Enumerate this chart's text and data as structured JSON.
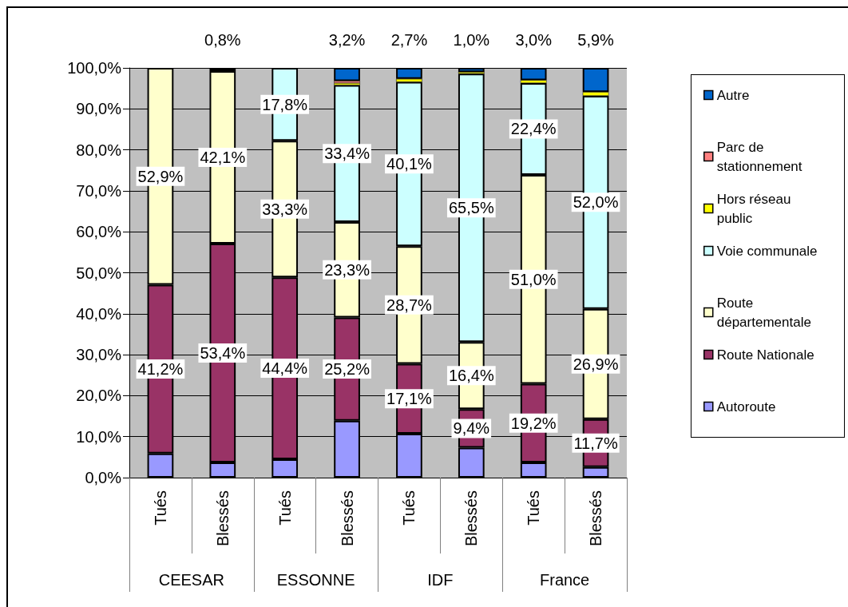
{
  "chart_data": {
    "type": "bar",
    "stacked": true,
    "categories": [
      "Tués",
      "Blessés",
      "Tués",
      "Blessés",
      "Tués",
      "Blessés",
      "Tués",
      "Blessés"
    ],
    "annotations": [
      "CEESAR",
      "ESSONNE",
      "IDF",
      "France"
    ],
    "ylim": [
      0,
      100
    ],
    "yticks": [
      {
        "value": 0,
        "label": "0,0%"
      },
      {
        "value": 10,
        "label": "10,0%"
      },
      {
        "value": 20,
        "label": "20,0%"
      },
      {
        "value": 30,
        "label": "30,0%"
      },
      {
        "value": 40,
        "label": "40,0%"
      },
      {
        "value": 50,
        "label": "50,0%"
      },
      {
        "value": 60,
        "label": "60,0%"
      },
      {
        "value": 70,
        "label": "70,0%"
      },
      {
        "value": 80,
        "label": "80,0%"
      },
      {
        "value": 90,
        "label": "90,0%"
      },
      {
        "value": 100,
        "label": "100,0%"
      }
    ],
    "grid": "y",
    "legend": "right",
    "series": [
      {
        "name": "Autoroute",
        "color": "#9999ff",
        "values": [
          5.9,
          3.7,
          4.5,
          13.9,
          10.7,
          7.3,
          3.7,
          2.6
        ]
      },
      {
        "name": "Route Nationale",
        "color": "#993366",
        "values": [
          41.2,
          53.4,
          44.4,
          25.2,
          17.1,
          9.4,
          19.2,
          11.7
        ],
        "value_labels": [
          "41,2%",
          "53,4%",
          "44,4%",
          "25,2%",
          "17,1%",
          "9,4%",
          "19,2%",
          "11,7%"
        ]
      },
      {
        "name": "Route départementale",
        "color": "#ffffcc",
        "values": [
          52.9,
          42.1,
          33.3,
          23.3,
          28.7,
          16.4,
          51.0,
          26.9
        ],
        "value_labels": [
          "52,9%",
          "42,1%",
          "33,3%",
          "23,3%",
          "28,7%",
          "16,4%",
          "51,0%",
          "26,9%"
        ]
      },
      {
        "name": "Voie communale",
        "color": "#ccffff",
        "values": [
          0,
          0.8,
          17.8,
          33.4,
          40.1,
          65.5,
          22.4,
          52.0
        ],
        "value_labels": [
          null,
          "0,8%",
          "17,8%",
          "33,4%",
          "40,1%",
          "65,5%",
          "22,4%",
          "52,0%"
        ]
      },
      {
        "name": "Hors réseau public",
        "color": "#ffff00",
        "values": [
          0,
          0,
          0,
          0.5,
          0.7,
          0.4,
          0.7,
          0.9
        ]
      },
      {
        "name": "Parc de stationnement",
        "color": "#ff8080",
        "values": [
          0,
          0,
          0,
          0.5,
          0,
          0,
          0,
          0
        ]
      },
      {
        "name": "Autre",
        "color": "#0066cc",
        "values": [
          0,
          0,
          0,
          3.2,
          2.7,
          1.0,
          3.0,
          5.9
        ],
        "value_labels": [
          null,
          null,
          null,
          "3,2%",
          "2,7%",
          "1,0%",
          "3,0%",
          "5,9%"
        ]
      }
    ]
  }
}
